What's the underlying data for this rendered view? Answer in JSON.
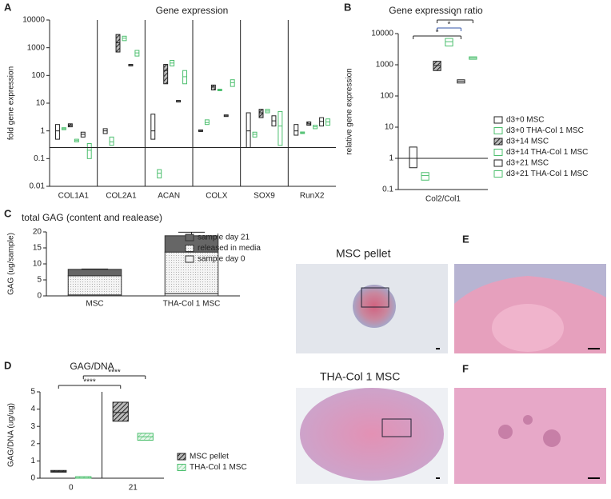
{
  "chart_data": [
    {
      "type": "floating_bar",
      "panel": "A",
      "title": "Gene expression",
      "y_label": "fold gene expression",
      "log_y": true,
      "ylim": [
        0.01,
        10000
      ],
      "yticks": [
        0.01,
        0.1,
        1,
        10,
        100,
        1000,
        10000
      ],
      "reference_line": 0.25,
      "separators": true,
      "categories": [
        "COL1A1",
        "COL2A1",
        "ACAN",
        "COLX",
        "SOX9",
        "RunX2"
      ],
      "series": [
        {
          "color": "#222222",
          "hatch": false,
          "low": [
            0.5,
            0.8,
            0.5,
            0.95,
            0.25,
            0.7
          ],
          "high": [
            1.7,
            1.2,
            4,
            1.05,
            4.5,
            1.7
          ],
          "values": [
            1,
            1,
            1,
            1,
            1,
            1
          ]
        },
        {
          "color": "#4cbf6e",
          "hatch": false,
          "low": [
            1.1,
            0.3,
            0.02,
            1.7,
            0.6,
            0.8
          ],
          "high": [
            1.3,
            0.6,
            0.04,
            2.5,
            0.9,
            0.9
          ],
          "values": [
            1.2,
            0.4,
            0.03,
            2,
            0.75,
            0.85
          ]
        },
        {
          "color": "#222222",
          "hatch": true,
          "low": [
            1.4,
            700,
            50,
            30,
            3,
            1.6
          ],
          "high": [
            1.8,
            3000,
            250,
            45,
            6,
            2.1
          ],
          "values": [
            1.6,
            1500,
            150,
            38,
            4.5,
            1.8
          ]
        },
        {
          "color": "#4cbf6e",
          "hatch": false,
          "low": [
            0.4,
            1800,
            220,
            28,
            4.5,
            1.2
          ],
          "high": [
            0.5,
            2600,
            350,
            32,
            6,
            1.6
          ],
          "values": [
            0.45,
            2200,
            280,
            30,
            5.2,
            1.4
          ]
        },
        {
          "color": "#222222",
          "hatch": false,
          "low": [
            0.6,
            220,
            11,
            3.3,
            1.5,
            1.5
          ],
          "high": [
            0.9,
            240,
            12,
            3.7,
            3.5,
            3
          ],
          "values": [
            0.75,
            230,
            11.5,
            3.5,
            2.3,
            2.2
          ]
        },
        {
          "color": "#4cbf6e",
          "hatch": false,
          "low": [
            0.1,
            500,
            50,
            40,
            0.3,
            1.6
          ],
          "high": [
            0.35,
            800,
            150,
            70,
            5,
            2.7
          ],
          "values": [
            0.2,
            650,
            90,
            55,
            1.5,
            2.1
          ]
        }
      ]
    },
    {
      "type": "floating_bar",
      "panel": "B",
      "title": "Gene expression ratio",
      "y_label": "relative gene expression",
      "log_y": true,
      "ylim": [
        0.1,
        10000
      ],
      "yticks": [
        0.1,
        1,
        10,
        100,
        1000,
        10000
      ],
      "reference_line": 1,
      "separators": false,
      "categories": [
        "Col2/Col1"
      ],
      "series": [
        {
          "name": "d3+0 MSC",
          "color": "#222222",
          "hatch": false,
          "low": [
            0.5
          ],
          "high": [
            2.3
          ],
          "values": [
            1
          ]
        },
        {
          "name": "d3+0 THA-Col 1 MSC",
          "color": "#4cbf6e",
          "hatch": false,
          "low": [
            0.2
          ],
          "high": [
            0.35
          ],
          "values": [
            0.28
          ]
        },
        {
          "name": "d3+14 MSC",
          "color": "#222222",
          "hatch": true,
          "low": [
            650
          ],
          "high": [
            1300
          ],
          "values": [
            950
          ]
        },
        {
          "name": "d3+14 THA-Col 1 MSC",
          "color": "#4cbf6e",
          "hatch": false,
          "low": [
            4000
          ],
          "high": [
            7000
          ],
          "values": [
            5500
          ]
        },
        {
          "name": "d3+21 MSC",
          "color": "#222222",
          "hatch": false,
          "low": [
            260
          ],
          "high": [
            330
          ],
          "values": [
            295
          ]
        },
        {
          "name": "d3+21 THA-Col 1 MSC",
          "color": "#4cbf6e",
          "hatch": false,
          "low": [
            1500
          ],
          "high": [
            1800
          ],
          "values": [
            1650
          ]
        }
      ],
      "significance": [
        {
          "from": 2,
          "to": 5,
          "label": "*"
        },
        {
          "from": 2,
          "to": 4,
          "label": "*"
        },
        {
          "from": 0,
          "to": 4,
          "label": "*"
        }
      ]
    },
    {
      "type": "stacked_bar",
      "panel": "C",
      "title": "total GAG (content and realease)",
      "y_label": "GAG (ug/sample)",
      "ylim": [
        0,
        20
      ],
      "yticks": [
        0,
        5,
        10,
        15,
        20
      ],
      "categories": [
        "MSC",
        "THA-Col 1 MSC"
      ],
      "series": [
        {
          "name": "sample day 0",
          "color": "#f2f2f2",
          "values": [
            0.3,
            0.7
          ],
          "errors": [
            0.1,
            0.1
          ]
        },
        {
          "name": "released in media",
          "color": "#dcdcdc",
          "values": [
            6.0,
            13.0
          ],
          "errors": [
            0.9,
            3.1
          ]
        },
        {
          "name": "sample day 21",
          "color": "#666666",
          "values": [
            2.0,
            5.1
          ],
          "errors": [
            0.1,
            1.1
          ]
        }
      ]
    },
    {
      "type": "floating_bar",
      "panel": "D",
      "title": "GAG/DNA",
      "y_label": "GAG/DNA (ug/ug)",
      "log_y": false,
      "ylim": [
        0,
        5
      ],
      "yticks": [
        0,
        1,
        2,
        3,
        4,
        5
      ],
      "separators": true,
      "categories": [
        "0",
        "21"
      ],
      "series": [
        {
          "name": "MSC pellet",
          "color": "#222222",
          "hatch": true,
          "low": [
            0.35,
            3.3
          ],
          "high": [
            0.45,
            4.4
          ],
          "values": [
            0.4,
            3.8
          ]
        },
        {
          "name": "THA-Col 1 MSC",
          "color": "#4cbf6e",
          "hatch": true,
          "low": [
            0,
            2.2
          ],
          "high": [
            0.02,
            2.6
          ],
          "values": [
            0.01,
            2.4
          ]
        }
      ],
      "significance": [
        {
          "series": 1,
          "from": 0,
          "to": 1,
          "label": "****"
        },
        {
          "series": 0,
          "from": 0,
          "to": 1,
          "label": "****"
        }
      ]
    }
  ],
  "images": [
    {
      "panel": "E",
      "title": "MSC pellet"
    },
    {
      "panel": "F",
      "title": "THA-Col 1 MSC"
    }
  ]
}
